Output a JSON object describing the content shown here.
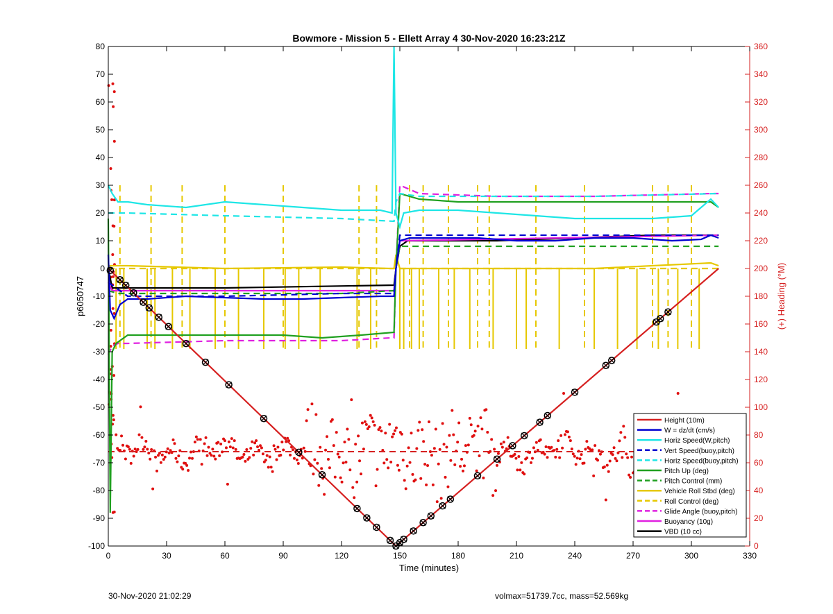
{
  "chart_data": {
    "type": "line",
    "title": "Bowmore - Mission 5 - Ellett Array 4 30-Nov-2020 16:23:21Z",
    "xlabel": "Time (minutes)",
    "ylabel_left": "p6050747",
    "ylabel_right": "(+) Heading (°M)",
    "xlim": [
      0,
      330
    ],
    "ylim_left": [
      -100,
      80
    ],
    "ylim_right": [
      0,
      360
    ],
    "xticks": [
      0,
      30,
      60,
      90,
      120,
      150,
      180,
      210,
      240,
      270,
      300,
      330
    ],
    "yticks_left": [
      -100,
      -90,
      -80,
      -70,
      -60,
      -50,
      -40,
      -30,
      -20,
      -10,
      0,
      10,
      20,
      30,
      40,
      50,
      60,
      70,
      80
    ],
    "yticks_right": [
      0,
      20,
      40,
      60,
      80,
      100,
      120,
      140,
      160,
      180,
      200,
      220,
      240,
      260,
      280,
      300,
      320,
      340,
      360
    ],
    "grid": false,
    "legend_position": "bottom-right",
    "series": [
      {
        "name": "Height (10m)",
        "color": "#d62020",
        "style": "solid",
        "axis": "left",
        "x": [
          0,
          148,
          314
        ],
        "y": [
          0,
          -100,
          0
        ]
      },
      {
        "name": "W = dz/dt (cm/s)",
        "color": "#0000d0",
        "style": "solid",
        "axis": "left",
        "x": [
          0,
          1,
          3,
          6,
          10,
          20,
          40,
          60,
          80,
          100,
          120,
          140,
          147,
          148,
          150,
          155,
          170,
          190,
          210,
          230,
          250,
          270,
          290,
          305,
          310,
          314
        ],
        "y": [
          5,
          -15,
          -18,
          -13,
          -11,
          -11,
          -10,
          -10.5,
          -11,
          -11,
          -10.5,
          -10,
          -10,
          0,
          10,
          11,
          11,
          11,
          10,
          10,
          11,
          11,
          10,
          10.5,
          12,
          11
        ]
      },
      {
        "name": "Horiz Speed(W,pitch)",
        "color": "#1ee6e6",
        "style": "solid",
        "axis": "left",
        "x": [
          0,
          2,
          5,
          10,
          20,
          40,
          60,
          80,
          100,
          120,
          140,
          146,
          147,
          148,
          150,
          152,
          160,
          180,
          200,
          220,
          240,
          260,
          280,
          300,
          310,
          314
        ],
        "y": [
          30,
          27,
          24,
          24,
          23,
          22,
          24,
          23,
          22,
          21,
          21,
          20,
          80,
          20,
          15,
          20,
          21,
          21,
          20,
          19,
          18,
          18,
          18,
          19,
          25,
          22
        ]
      },
      {
        "name": "Vert Speed(buoy,pitch)",
        "color": "#0000d0",
        "style": "dashed",
        "axis": "left",
        "x": [
          0,
          10,
          60,
          120,
          147,
          148,
          150,
          160,
          200,
          250,
          314
        ],
        "y": [
          -5,
          -10,
          -10,
          -9,
          -9,
          0,
          12,
          12,
          12,
          12,
          12
        ]
      },
      {
        "name": "Horiz Speed(buoy,pitch)",
        "color": "#1ee6e6",
        "style": "dashed",
        "axis": "left",
        "x": [
          0,
          10,
          60,
          120,
          147,
          148,
          150,
          160,
          200,
          250,
          314
        ],
        "y": [
          20,
          20,
          19,
          18,
          17,
          24,
          27,
          26,
          26,
          26,
          27
        ]
      },
      {
        "name": "Pitch Up (deg)",
        "color": "#20a020",
        "style": "solid",
        "axis": "left",
        "x": [
          0,
          1,
          2,
          4,
          10,
          30,
          60,
          90,
          110,
          130,
          147,
          148,
          150,
          160,
          180,
          200,
          240,
          280,
          310,
          314
        ],
        "y": [
          18,
          -88,
          -30,
          -27,
          -24,
          -24,
          -24,
          -24,
          -25,
          -24,
          -23,
          0,
          27,
          25,
          24,
          24,
          24,
          24,
          24,
          22
        ]
      },
      {
        "name": "Pitch Control (mm)",
        "color": "#20a020",
        "style": "dashed",
        "axis": "left",
        "x": [
          0,
          5,
          60,
          120,
          147,
          148,
          150,
          160,
          200,
          250,
          314
        ],
        "y": [
          -8,
          -9,
          -9,
          -9,
          -8,
          0,
          8,
          8,
          8,
          8,
          8
        ]
      },
      {
        "name": "Vehicle Roll Stbd (deg)",
        "color": "#e6c800",
        "style": "solid",
        "axis": "left",
        "x": [
          0,
          10,
          60,
          120,
          145,
          147,
          148,
          150,
          160,
          200,
          250,
          310,
          314
        ],
        "y": [
          1,
          1,
          0,
          0.5,
          0,
          0,
          5,
          0,
          0,
          0,
          0,
          2,
          1
        ]
      },
      {
        "name": "Roll Control (deg)",
        "color": "#e6c800",
        "style": "dashed",
        "axis": "left",
        "x": [
          0,
          60,
          120,
          147,
          150,
          200,
          250,
          314
        ],
        "y": [
          0,
          0,
          0,
          0,
          0,
          0,
          0,
          0
        ]
      },
      {
        "name": "Glide Angle (buoy,pitch)",
        "color": "#e020e0",
        "style": "dashed",
        "axis": "left",
        "x": [
          0,
          2,
          5,
          10,
          60,
          120,
          145,
          147,
          148,
          150,
          160,
          200,
          250,
          310,
          314
        ],
        "y": [
          -31,
          -28,
          -27,
          -27,
          -26,
          -26,
          -25,
          -25,
          0,
          30,
          27,
          26,
          26,
          27,
          27
        ]
      },
      {
        "name": "Buoyancy (10g)",
        "color": "#e020e0",
        "style": "solid",
        "axis": "left",
        "x": [
          0,
          2,
          60,
          147,
          148,
          150,
          314
        ],
        "y": [
          -5,
          -8,
          -8,
          -8,
          0,
          10,
          12
        ]
      },
      {
        "name": "VBD (10 cc)",
        "color": "#000000",
        "style": "solid",
        "axis": "left",
        "x": [
          0,
          2,
          60,
          147,
          148,
          150,
          154,
          160,
          200,
          240,
          280,
          314
        ],
        "y": [
          0,
          -7,
          -7,
          -6,
          0,
          8,
          10,
          10,
          10,
          11,
          12,
          12
        ]
      },
      {
        "name": "",
        "color": "#d62020",
        "style": "dots",
        "axis": "right",
        "x": [],
        "y": []
      }
    ],
    "heading_target": 68,
    "legend": [
      "Height (10m)",
      "W = dz/dt (cm/s)",
      "Horiz Speed(W,pitch)",
      "Vert Speed(buoy,pitch)",
      "Horiz Speed(buoy,pitch)",
      "Pitch Up (deg)",
      "Pitch Control (mm)",
      "Vehicle Roll Stbd (deg)",
      "Roll Control (deg)",
      "Glide Angle (buoy,pitch)",
      "Buoyancy (10g)",
      "VBD (10 cc)"
    ],
    "legend_styles": [
      {
        "color": "#d62020",
        "style": "solid"
      },
      {
        "color": "#0000d0",
        "style": "solid"
      },
      {
        "color": "#1ee6e6",
        "style": "solid"
      },
      {
        "color": "#0000d0",
        "style": "dashed"
      },
      {
        "color": "#1ee6e6",
        "style": "dashed"
      },
      {
        "color": "#20a020",
        "style": "solid"
      },
      {
        "color": "#20a020",
        "style": "dashed"
      },
      {
        "color": "#e6c800",
        "style": "solid"
      },
      {
        "color": "#e6c800",
        "style": "dashed"
      },
      {
        "color": "#e020e0",
        "style": "dashed"
      },
      {
        "color": "#e020e0",
        "style": "solid"
      },
      {
        "color": "#000000",
        "style": "solid"
      }
    ]
  },
  "footer": {
    "timestamp": "30-Nov-2020 21:02:29",
    "stats": "volmax=51739.7cc, mass=52.569kg"
  }
}
